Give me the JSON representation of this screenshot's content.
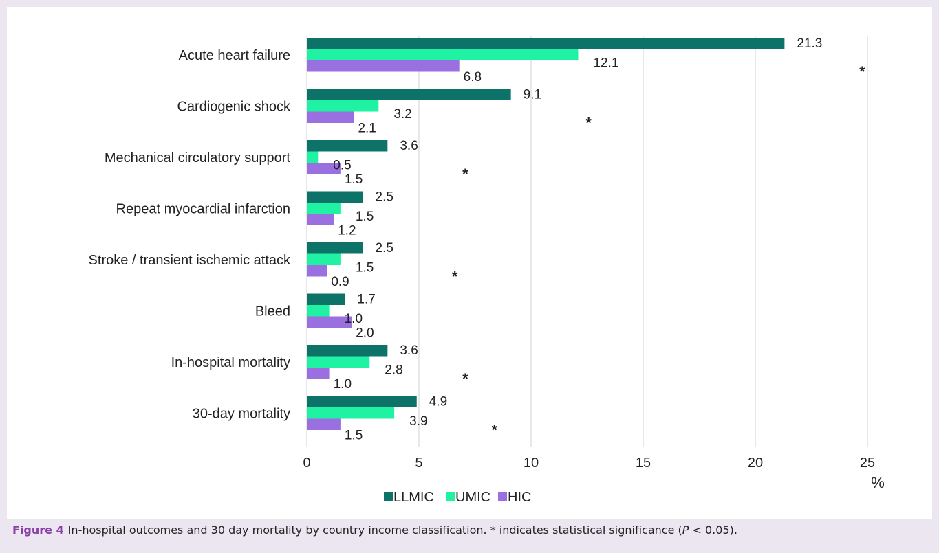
{
  "colors": {
    "background": "#ece6f1",
    "panel": "#ffffff",
    "grid": "#d9d9d9",
    "figure_label": "#8a3fa8"
  },
  "chart_data": {
    "type": "bar",
    "orientation": "horizontal",
    "categories": [
      "Acute heart failure",
      "Cardiogenic shock",
      "Mechanical circulatory support",
      "Repeat myocardial infarction",
      "Stroke / transient ischemic attack",
      "Bleed",
      "In-hospital mortality",
      "30-day mortality"
    ],
    "series": [
      {
        "name": "LLMIC",
        "color": "#0d7268",
        "values": [
          21.3,
          9.1,
          3.6,
          2.5,
          2.5,
          1.7,
          3.6,
          4.9
        ],
        "labels": [
          "21.3",
          "9.1",
          "3.6",
          "2.5",
          "2.5",
          "1.7",
          "3.6",
          "4.9"
        ]
      },
      {
        "name": "UMIC",
        "color": "#1ff2a2",
        "values": [
          12.1,
          3.2,
          0.5,
          1.5,
          1.5,
          1.0,
          2.8,
          3.9
        ],
        "labels": [
          "12.1",
          "3.2",
          "0.5",
          "1.5",
          "1.5",
          "1.0",
          "2.8",
          "3.9"
        ]
      },
      {
        "name": "HIC",
        "color": "#9a6fe0",
        "values": [
          6.8,
          2.1,
          1.5,
          1.2,
          0.9,
          2.0,
          1.0,
          1.5
        ],
        "labels": [
          "6.8",
          "2.1",
          "1.5",
          "1.2",
          "0.9",
          "2.0",
          "1.0",
          "1.5"
        ]
      }
    ],
    "significant": [
      true,
      true,
      true,
      false,
      true,
      false,
      true,
      true
    ],
    "significance_marker": "*",
    "xlim": [
      0,
      25
    ],
    "xticks": [
      0,
      5,
      10,
      15,
      20,
      25
    ],
    "xlabel": "%",
    "grid": "vertical",
    "legend_position": "bottom"
  },
  "caption": {
    "label": "Figure 4",
    "text": "In-hospital outcomes and 30 day mortality by country income classification. * indicates statistical significance (",
    "p": "P",
    "text_end": " < 0.05)."
  }
}
